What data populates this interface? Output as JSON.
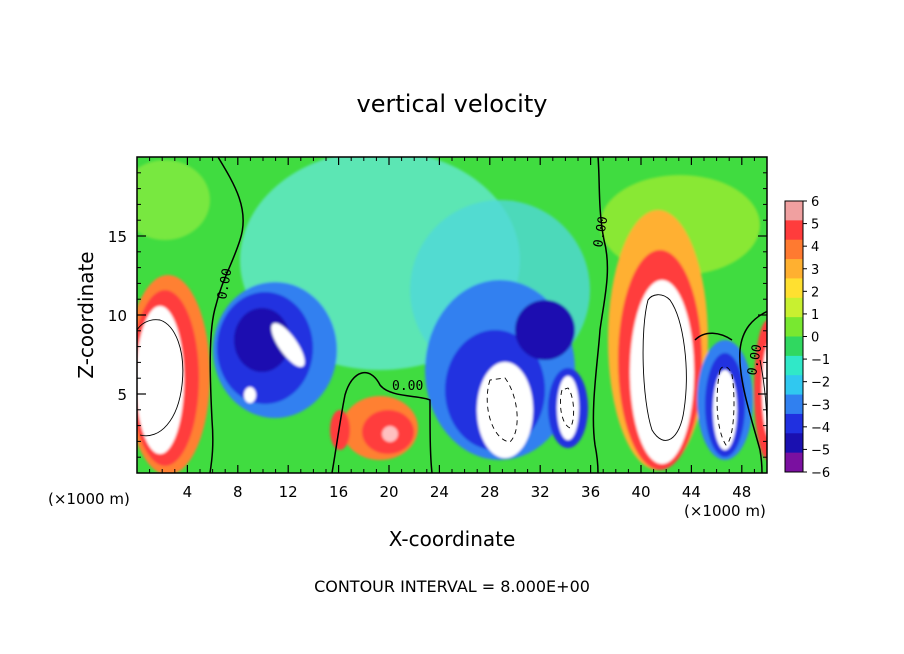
{
  "chart_data": {
    "type": "heatmap",
    "title": "vertical velocity",
    "xlabel": "X-coordinate",
    "ylabel": "Z-coordinate",
    "x_unit_label": "(×1000 m)",
    "x_unit_label_right": "(×1000 m)",
    "xlim": [
      0,
      50
    ],
    "ylim": [
      0,
      20
    ],
    "x_ticks": [
      4,
      8,
      12,
      16,
      20,
      24,
      28,
      32,
      36,
      40,
      44,
      48
    ],
    "x_tick_labels": [
      "4",
      "8",
      "12",
      "16",
      "20",
      "24",
      "28",
      "32",
      "36",
      "40",
      "44",
      "48"
    ],
    "y_ticks": [
      5,
      10,
      15
    ],
    "y_tick_labels": [
      "5",
      "10",
      "15"
    ],
    "colorbar": {
      "min": -6,
      "max": 6,
      "tick_labels": [
        "6",
        "5",
        "4",
        "3",
        "2",
        "1",
        "0",
        "−1",
        "−2",
        "−3",
        "−4",
        "−5",
        "−6"
      ],
      "colors": [
        "#f0a0a0",
        "#ff3c3c",
        "#ff7a30",
        "#ffb030",
        "#ffe030",
        "#c8f030",
        "#78e830",
        "#30d860",
        "#30e8c8",
        "#30c8f0",
        "#3080f0",
        "#2030e0",
        "#1a10b0",
        "#7a10a0"
      ]
    },
    "contour_labels": [
      "0.00",
      "0.00",
      "0.00",
      "0.00"
    ],
    "contour_interval_text": "CONTOUR INTERVAL = 8.000E+00",
    "features": [
      {
        "kind": "updraft",
        "x": 1.5,
        "z": 6.5,
        "w": 8
      },
      {
        "kind": "downdraft",
        "x": 10.5,
        "z": 8.5,
        "w": -8
      },
      {
        "kind": "updraft",
        "x": 19.5,
        "z": 2.5,
        "w": 6
      },
      {
        "kind": "downdraft",
        "x": 29.5,
        "z": 3.5,
        "w": -8
      },
      {
        "kind": "downdraft",
        "x": 33.5,
        "z": 4.5,
        "w": -8
      },
      {
        "kind": "updraft",
        "x": 41.0,
        "z": 7.5,
        "w": 8
      },
      {
        "kind": "downdraft",
        "x": 46.5,
        "z": 3.5,
        "w": -8
      },
      {
        "kind": "updraft",
        "x": 49.6,
        "z": 5.5,
        "w": 8
      }
    ]
  }
}
